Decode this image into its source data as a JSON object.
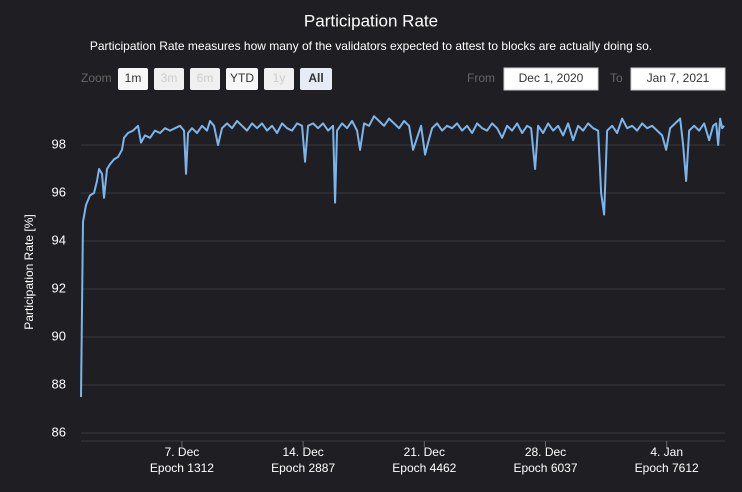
{
  "chart_data": {
    "type": "line",
    "title": "Participation Rate",
    "subtitle": "Participation Rate measures how many of the validators expected to attest to blocks are actually doing so.",
    "y_label": "Participation Rate [%]",
    "range_selector": {
      "zoom_label": "Zoom",
      "buttons": [
        {
          "label": "1m",
          "enabled": true,
          "selected": false
        },
        {
          "label": "3m",
          "enabled": false,
          "selected": false
        },
        {
          "label": "6m",
          "enabled": false,
          "selected": false
        },
        {
          "label": "YTD",
          "enabled": true,
          "selected": false
        },
        {
          "label": "1y",
          "enabled": false,
          "selected": false
        },
        {
          "label": "All",
          "enabled": true,
          "selected": true
        }
      ],
      "from_label": "From",
      "from": "Dec 1, 2020",
      "to_label": "To",
      "to": "Jan 7, 2021"
    },
    "xlim": [
      0,
      8370
    ],
    "xticks": [
      {
        "value": 1312,
        "label": [
          "7. Dec",
          "Epoch 1312"
        ]
      },
      {
        "value": 2887,
        "label": [
          "14. Dec",
          "Epoch 2887"
        ]
      },
      {
        "value": 4462,
        "label": [
          "21. Dec",
          "Epoch 4462"
        ]
      },
      {
        "value": 6037,
        "label": [
          "28. Dec",
          "Epoch 6037"
        ]
      },
      {
        "value": 7612,
        "label": [
          "4. Jan",
          "Epoch 7612"
        ]
      }
    ],
    "ylim": [
      86,
      100
    ],
    "yticks": [
      86,
      88,
      90,
      92,
      94,
      96,
      98
    ],
    "grid": true,
    "series": [
      {
        "color": "#7cb5ec",
        "x": [
          0,
          26,
          65,
          117,
          169,
          208,
          234,
          273,
          299,
          338,
          377,
          429,
          481,
          533,
          559,
          611,
          676,
          741,
          780,
          832,
          897,
          962,
          1027,
          1092,
          1157,
          1222,
          1287,
          1339,
          1365,
          1391,
          1443,
          1508,
          1573,
          1638,
          1677,
          1729,
          1781,
          1833,
          1898,
          1963,
          2028,
          2093,
          2158,
          2223,
          2288,
          2353,
          2418,
          2483,
          2548,
          2613,
          2678,
          2743,
          2808,
          2873,
          2912,
          2951,
          3016,
          3081,
          3146,
          3211,
          3276,
          3302,
          3328,
          3393,
          3458,
          3523,
          3588,
          3627,
          3679,
          3744,
          3809,
          3874,
          3939,
          4004,
          4069,
          4134,
          4199,
          4264,
          4316,
          4368,
          4420,
          4472,
          4511,
          4563,
          4628,
          4693,
          4758,
          4823,
          4888,
          4953,
          5018,
          5083,
          5148,
          5213,
          5278,
          5343,
          5408,
          5473,
          5538,
          5603,
          5668,
          5733,
          5798,
          5850,
          5902,
          5941,
          6006,
          6071,
          6136,
          6201,
          6266,
          6331,
          6396,
          6461,
          6526,
          6591,
          6656,
          6721,
          6760,
          6799,
          6838,
          6903,
          6968,
          7033,
          7098,
          7163,
          7228,
          7293,
          7358,
          7423,
          7488,
          7553,
          7605,
          7657,
          7722,
          7787,
          7826,
          7865,
          7904,
          7969,
          8034,
          8099,
          8164,
          8216,
          8255,
          8281,
          8307,
          8333,
          8359
        ],
        "values": [
          87.5,
          94.8,
          95.5,
          95.9,
          96.0,
          96.5,
          97.0,
          96.8,
          95.8,
          97.0,
          97.2,
          97.4,
          97.5,
          97.8,
          98.3,
          98.5,
          98.6,
          98.8,
          98.1,
          98.4,
          98.3,
          98.6,
          98.5,
          98.7,
          98.6,
          98.7,
          98.8,
          98.6,
          96.8,
          98.5,
          98.7,
          98.5,
          98.8,
          98.6,
          99.0,
          98.8,
          98.0,
          98.7,
          98.9,
          98.7,
          99.0,
          98.8,
          98.6,
          98.9,
          98.7,
          98.9,
          98.6,
          98.8,
          98.5,
          98.9,
          98.7,
          98.6,
          98.9,
          98.8,
          97.3,
          98.8,
          98.9,
          98.7,
          98.9,
          98.6,
          98.8,
          95.6,
          98.6,
          98.9,
          98.7,
          99.0,
          98.6,
          97.8,
          98.9,
          98.8,
          99.2,
          99.0,
          98.8,
          99.1,
          98.9,
          98.7,
          99.0,
          98.8,
          97.8,
          98.3,
          98.8,
          97.6,
          98.1,
          98.7,
          98.9,
          98.6,
          98.8,
          98.7,
          98.9,
          98.6,
          98.8,
          98.5,
          98.9,
          98.7,
          98.6,
          98.9,
          98.7,
          98.3,
          98.8,
          98.6,
          98.9,
          98.5,
          98.8,
          98.7,
          97.0,
          98.8,
          98.5,
          98.9,
          98.6,
          98.8,
          98.4,
          98.9,
          98.2,
          98.8,
          98.6,
          98.9,
          98.7,
          98.6,
          96.0,
          95.1,
          98.6,
          98.8,
          98.5,
          99.1,
          98.7,
          98.8,
          98.6,
          98.9,
          98.7,
          98.8,
          98.6,
          98.4,
          97.8,
          98.7,
          98.9,
          99.1,
          98.0,
          96.5,
          98.6,
          98.8,
          98.6,
          98.9,
          98.2,
          98.8,
          98.9,
          98.0,
          99.1,
          98.7,
          98.8
        ]
      }
    ]
  }
}
